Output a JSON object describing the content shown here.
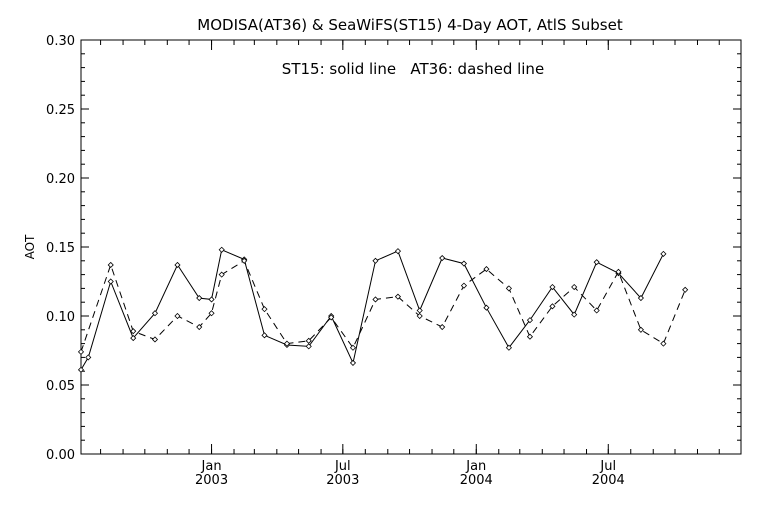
{
  "chart_data": {
    "type": "line",
    "title": "MODISA(AT36) & SeaWiFS(ST15) 4-Day AOT, AtlS Subset",
    "annotation": "ST15: solid line   AT36: dashed line",
    "ylabel": "AOT",
    "xlabel": "",
    "ylim": [
      0.0,
      0.3
    ],
    "xlim": [
      "2002-07-05",
      "2004-12-31"
    ],
    "grid": false,
    "yticks": [
      {
        "value": 0.0,
        "label": "0.00"
      },
      {
        "value": 0.05,
        "label": "0.05"
      },
      {
        "value": 0.1,
        "label": "0.10"
      },
      {
        "value": 0.15,
        "label": "0.15"
      },
      {
        "value": 0.2,
        "label": "0.20"
      },
      {
        "value": 0.25,
        "label": "0.25"
      },
      {
        "value": 0.3,
        "label": "0.30"
      }
    ],
    "xticks": [
      {
        "value": "2003-01-01",
        "label1": "Jan",
        "label2": "2003"
      },
      {
        "value": "2003-07-01",
        "label1": "Jul",
        "label2": "2003"
      },
      {
        "value": "2004-01-01",
        "label1": "Jan",
        "label2": "2004"
      },
      {
        "value": "2004-07-01",
        "label1": "Jul",
        "label2": "2004"
      }
    ],
    "x": [
      "2002-07-05",
      "2002-07-15",
      "2002-08-15",
      "2002-09-15",
      "2002-10-15",
      "2002-11-15",
      "2002-12-15",
      "2003-01-01",
      "2003-01-15",
      "2003-02-15",
      "2003-03-15",
      "2003-04-15",
      "2003-05-15",
      "2003-06-15",
      "2003-07-15",
      "2003-08-15",
      "2003-09-15",
      "2003-10-15",
      "2003-11-15",
      "2003-12-15",
      "2004-01-15",
      "2004-02-15",
      "2004-03-15",
      "2004-04-15",
      "2004-05-15",
      "2004-06-15",
      "2004-07-15",
      "2004-08-15",
      "2004-09-15",
      "2004-10-15",
      "2004-11-15",
      "2004-12-31"
    ],
    "series": [
      {
        "name": "ST15",
        "style": "solid",
        "values": [
          0.061,
          0.07,
          0.125,
          0.084,
          0.102,
          0.137,
          0.113,
          0.112,
          0.148,
          0.141,
          0.086,
          0.079,
          0.078,
          0.1,
          0.066,
          0.14,
          0.147,
          0.104,
          0.142,
          0.138,
          0.106,
          0.077,
          0.097,
          0.121,
          0.101,
          0.139,
          0.131,
          0.113,
          0.145,
          null,
          null,
          null
        ]
      },
      {
        "name": "AT36",
        "style": "dashed",
        "values": [
          0.074,
          null,
          0.137,
          0.089,
          0.083,
          0.1,
          0.092,
          0.102,
          0.13,
          0.14,
          0.105,
          0.08,
          0.082,
          0.099,
          0.077,
          0.112,
          0.114,
          0.1,
          0.092,
          0.122,
          0.134,
          0.12,
          0.085,
          0.107,
          0.121,
          0.104,
          0.132,
          0.09,
          0.08,
          0.119,
          null,
          null
        ]
      }
    ]
  }
}
